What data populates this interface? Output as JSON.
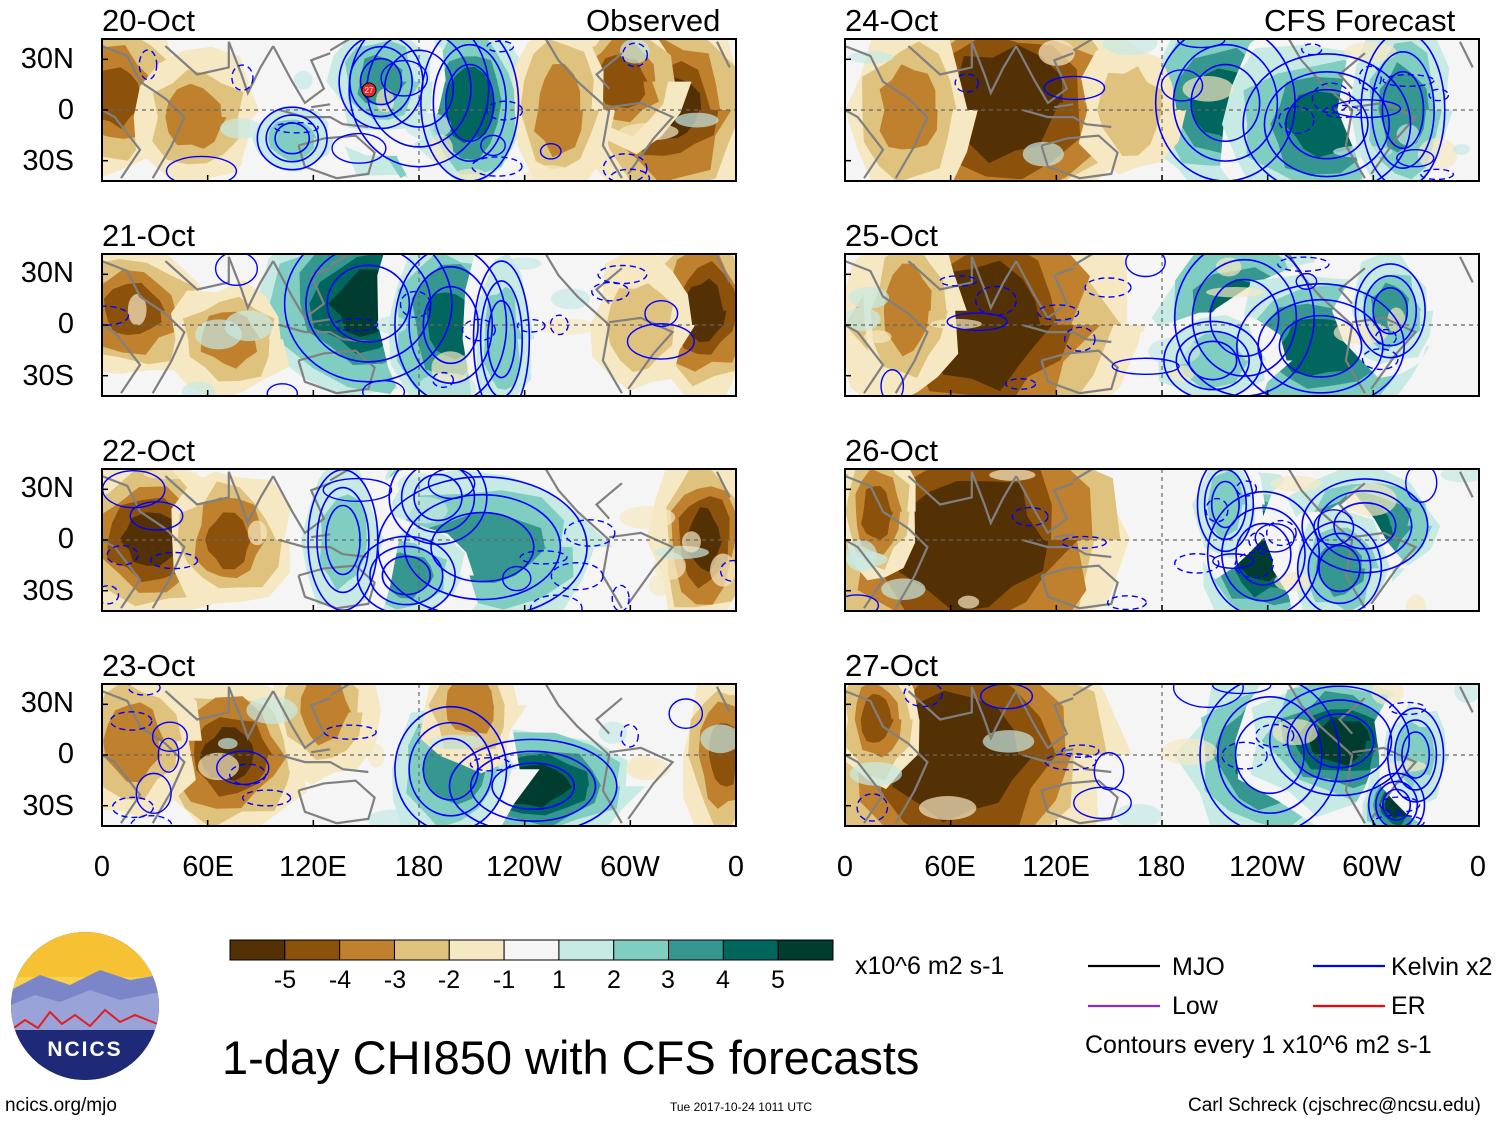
{
  "header": {
    "left_label": "Observed",
    "right_label": "CFS Forecast"
  },
  "panels_left": [
    "20-Oct",
    "21-Oct",
    "22-Oct",
    "23-Oct"
  ],
  "panels_right": [
    "24-Oct",
    "25-Oct",
    "26-Oct",
    "27-Oct"
  ],
  "lat_labels": [
    "30N",
    "0",
    "30S"
  ],
  "lon_labels": [
    "0",
    "60E",
    "120E",
    "180",
    "120W",
    "60W",
    "0"
  ],
  "colorbar": {
    "ticks": [
      "-5",
      "-4",
      "-3",
      "-2",
      "-1",
      "1",
      "2",
      "3",
      "4",
      "5"
    ],
    "colors": [
      "#543005",
      "#8c510a",
      "#bf812d",
      "#dfc27d",
      "#f6e8c3",
      "#f5f5f5",
      "#c7eae5",
      "#80cdc1",
      "#35978f",
      "#01665e",
      "#003c30"
    ],
    "units": "x10^6 m2 s-1"
  },
  "legend": {
    "items": [
      {
        "label": "MJO",
        "color": "#000000"
      },
      {
        "label": "Kelvin x2",
        "color": "#0000ff"
      },
      {
        "label": "Low",
        "color": "#8a2be2"
      },
      {
        "label": "ER",
        "color": "#ff0000"
      }
    ],
    "note": "Contours every 1 x10^6 m2 s-1"
  },
  "title": "1-day CHI850 with CFS forecasts",
  "logo_text": "NCICS",
  "footer": {
    "url": "ncics.org/mjo",
    "timestamp": "Tue 2017-10-24 1011 UTC",
    "credit": "Carl Schreck (cjschrec@ncsu.edu)"
  },
  "storm_marker": "27"
}
